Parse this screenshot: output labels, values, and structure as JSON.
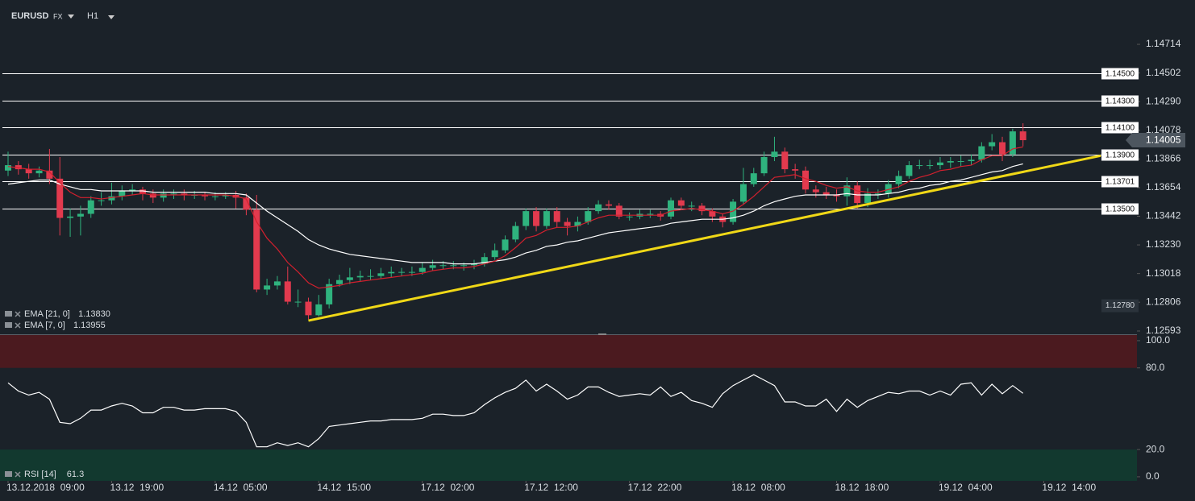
{
  "header": {
    "symbol": "EURUSD",
    "market": "FX",
    "timeframe": "H1"
  },
  "chart_data": [
    {
      "type": "candlestick",
      "up_color": "#2fb37e",
      "down_color": "#e23a4e",
      "open": [
        1.1378,
        1.1382,
        1.1379,
        1.1376,
        1.1378,
        1.1372,
        1.1343,
        1.1344,
        1.1346,
        1.1356,
        1.1356,
        1.1359,
        1.1363,
        1.1364,
        1.1361,
        1.1358,
        1.1361,
        1.1361,
        1.136,
        1.136,
        1.1359,
        1.1359,
        1.136,
        1.1358,
        1.1349,
        1.129,
        1.1293,
        1.1296,
        1.1281,
        1.1281,
        1.1271,
        1.1279,
        1.1294,
        1.1297,
        1.1299,
        1.13,
        1.13,
        1.1302,
        1.1303,
        1.1303,
        1.1303,
        1.1306,
        1.1308,
        1.1308,
        1.1308,
        1.1308,
        1.1309,
        1.1314,
        1.1319,
        1.1327,
        1.1337,
        1.1348,
        1.1337,
        1.1348,
        1.134,
        1.1337,
        1.134,
        1.1348,
        1.1353,
        1.1352,
        1.1344,
        1.1344,
        1.1346,
        1.1346,
        1.1344,
        1.1356,
        1.1352,
        1.1352,
        1.1348,
        1.1344,
        1.134,
        1.1355,
        1.1368,
        1.1376,
        1.1388,
        1.1392,
        1.1379,
        1.1378,
        1.1364,
        1.1362,
        1.136,
        1.1359,
        1.1367,
        1.1354,
        1.1361,
        1.1361,
        1.1368,
        1.1374,
        1.1382,
        1.1382,
        1.1382,
        1.1384,
        1.1385,
        1.1385,
        1.1386,
        1.1396,
        1.1399,
        1.139,
        1.1407
      ],
      "high": [
        1.1392,
        1.1385,
        1.1383,
        1.1381,
        1.1394,
        1.1388,
        1.135,
        1.1352,
        1.1359,
        1.1362,
        1.1369,
        1.1367,
        1.1368,
        1.1366,
        1.1364,
        1.1364,
        1.1364,
        1.1364,
        1.1363,
        1.1362,
        1.1362,
        1.1362,
        1.1363,
        1.1361,
        1.136,
        1.1298,
        1.13,
        1.1307,
        1.129,
        1.1284,
        1.1286,
        1.1298,
        1.1301,
        1.1306,
        1.1304,
        1.1305,
        1.1306,
        1.1307,
        1.1306,
        1.1307,
        1.131,
        1.1312,
        1.1311,
        1.1311,
        1.131,
        1.1312,
        1.1317,
        1.1324,
        1.133,
        1.134,
        1.135,
        1.1351,
        1.135,
        1.1351,
        1.1343,
        1.1344,
        1.1351,
        1.1356,
        1.1356,
        1.1354,
        1.1347,
        1.1349,
        1.1349,
        1.1348,
        1.1358,
        1.1358,
        1.1355,
        1.1354,
        1.135,
        1.1346,
        1.1357,
        1.138,
        1.138,
        1.1392,
        1.1403,
        1.1395,
        1.1383,
        1.1381,
        1.1367,
        1.1366,
        1.1364,
        1.1373,
        1.137,
        1.1365,
        1.1364,
        1.1371,
        1.1378,
        1.1385,
        1.1386,
        1.1386,
        1.1388,
        1.1388,
        1.1389,
        1.139,
        1.1399,
        1.1405,
        1.1403,
        1.1409,
        1.1413
      ],
      "low": [
        1.1374,
        1.1375,
        1.1372,
        1.1373,
        1.1368,
        1.133,
        1.1329,
        1.133,
        1.1343,
        1.1352,
        1.1353,
        1.1356,
        1.136,
        1.1356,
        1.1354,
        1.1355,
        1.1357,
        1.1356,
        1.1357,
        1.1356,
        1.1356,
        1.1357,
        1.135,
        1.1345,
        1.1288,
        1.1286,
        1.129,
        1.1279,
        1.1277,
        1.1268,
        1.127,
        1.1276,
        1.1292,
        1.1294,
        1.1296,
        1.1297,
        1.1298,
        1.1299,
        1.13,
        1.13,
        1.1301,
        1.1304,
        1.1305,
        1.1305,
        1.1304,
        1.1305,
        1.1307,
        1.1312,
        1.1317,
        1.1325,
        1.1334,
        1.1333,
        1.1335,
        1.1336,
        1.133,
        1.1333,
        1.1338,
        1.1346,
        1.1349,
        1.1342,
        1.1341,
        1.1342,
        1.1343,
        1.1341,
        1.1342,
        1.1349,
        1.1348,
        1.1345,
        1.134,
        1.1336,
        1.1338,
        1.1353,
        1.1366,
        1.1374,
        1.1385,
        1.1376,
        1.1372,
        1.1361,
        1.1358,
        1.1357,
        1.1355,
        1.1352,
        1.135,
        1.1351,
        1.1357,
        1.1358,
        1.1365,
        1.1372,
        1.1379,
        1.1379,
        1.1379,
        1.138,
        1.1381,
        1.1382,
        1.1384,
        1.1393,
        1.1385,
        1.1388,
        1.1396
      ],
      "close": [
        1.1382,
        1.1379,
        1.1376,
        1.1378,
        1.1372,
        1.1343,
        1.1344,
        1.1346,
        1.1356,
        1.1356,
        1.1359,
        1.1363,
        1.1364,
        1.1361,
        1.1358,
        1.1361,
        1.1361,
        1.136,
        1.136,
        1.1359,
        1.1359,
        1.136,
        1.1358,
        1.1349,
        1.129,
        1.1293,
        1.1296,
        1.1281,
        1.1281,
        1.1271,
        1.1279,
        1.1294,
        1.1297,
        1.1299,
        1.13,
        1.13,
        1.1302,
        1.1303,
        1.1303,
        1.1303,
        1.1306,
        1.1308,
        1.1308,
        1.1308,
        1.1308,
        1.1309,
        1.1314,
        1.1319,
        1.1327,
        1.1337,
        1.1348,
        1.1337,
        1.1348,
        1.134,
        1.1337,
        1.134,
        1.1348,
        1.1353,
        1.1352,
        1.1344,
        1.1344,
        1.1346,
        1.1346,
        1.1344,
        1.1356,
        1.1352,
        1.1352,
        1.1348,
        1.1344,
        1.134,
        1.1355,
        1.1368,
        1.1376,
        1.1388,
        1.1392,
        1.1379,
        1.1378,
        1.1364,
        1.1362,
        1.136,
        1.1359,
        1.1367,
        1.1354,
        1.1361,
        1.1361,
        1.1368,
        1.1374,
        1.1382,
        1.1382,
        1.1382,
        1.1384,
        1.1385,
        1.1385,
        1.1386,
        1.1396,
        1.1399,
        1.139,
        1.1407,
        1.14005
      ],
      "series": [
        {
          "name": "EMA [21, 0]",
          "color": "#ffffff",
          "last_label": "1.13830",
          "values": [
            1.1368,
            1.1369,
            1.137,
            1.1371,
            1.1371,
            1.1368,
            1.1366,
            1.1364,
            1.1364,
            1.1363,
            1.1363,
            1.1363,
            1.1363,
            1.1363,
            1.1362,
            1.1362,
            1.1362,
            1.1362,
            1.1362,
            1.1362,
            1.1361,
            1.1361,
            1.1361,
            1.136,
            1.1354,
            1.1348,
            1.1343,
            1.1338,
            1.1333,
            1.1327,
            1.1323,
            1.132,
            1.1318,
            1.1316,
            1.1315,
            1.1314,
            1.1313,
            1.1312,
            1.1311,
            1.131,
            1.131,
            1.131,
            1.131,
            1.1309,
            1.1309,
            1.1309,
            1.131,
            1.1311,
            1.1312,
            1.1314,
            1.1317,
            1.1319,
            1.1322,
            1.1323,
            1.1325,
            1.1326,
            1.1328,
            1.133,
            1.1332,
            1.1333,
            1.1334,
            1.1335,
            1.1336,
            1.1337,
            1.1339,
            1.134,
            1.1341,
            1.1342,
            1.1342,
            1.1342,
            1.1343,
            1.1345,
            1.1348,
            1.1352,
            1.1355,
            1.1357,
            1.1359,
            1.136,
            1.136,
            1.136,
            1.136,
            1.1361,
            1.136,
            1.136,
            1.136,
            1.1361,
            1.1362,
            1.1364,
            1.1365,
            1.1367,
            1.1368,
            1.137,
            1.1371,
            1.1373,
            1.1375,
            1.1377,
            1.1378,
            1.1381,
            1.1383
          ]
        },
        {
          "name": "EMA [7, 0]",
          "color": "#d3202e",
          "last_label": "1.13955",
          "values": [
            1.1381,
            1.138,
            1.1379,
            1.1379,
            1.1377,
            1.1369,
            1.1362,
            1.1358,
            1.1358,
            1.1357,
            1.1358,
            1.1359,
            1.136,
            1.1361,
            1.136,
            1.136,
            1.136,
            1.136,
            1.136,
            1.136,
            1.136,
            1.136,
            1.1359,
            1.1357,
            1.134,
            1.1328,
            1.132,
            1.131,
            1.1303,
            1.1295,
            1.1291,
            1.1292,
            1.1293,
            1.1295,
            1.1296,
            1.1297,
            1.1298,
            1.1299,
            1.13,
            1.1301,
            1.1302,
            1.1304,
            1.1305,
            1.1306,
            1.1306,
            1.1307,
            1.1309,
            1.1311,
            1.1315,
            1.1321,
            1.1328,
            1.133,
            1.1334,
            1.1336,
            1.1336,
            1.1337,
            1.134,
            1.1343,
            1.1345,
            1.1345,
            1.1345,
            1.1345,
            1.1345,
            1.1345,
            1.1348,
            1.1349,
            1.135,
            1.1349,
            1.1348,
            1.1346,
            1.1348,
            1.1353,
            1.1359,
            1.1366,
            1.1373,
            1.1374,
            1.1375,
            1.1372,
            1.137,
            1.1367,
            1.1365,
            1.1366,
            1.1363,
            1.1362,
            1.1362,
            1.1364,
            1.1366,
            1.137,
            1.1373,
            1.1375,
            1.1378,
            1.1379,
            1.1381,
            1.1382,
            1.1386,
            1.1389,
            1.1389,
            1.1394,
            1.13955
          ]
        }
      ],
      "xlim": [
        0,
        109
      ],
      "xticks": [
        {
          "value": 0,
          "label": "13.12.2018  09:00"
        },
        {
          "value": 10,
          "label": "13.12  19:00"
        },
        {
          "value": 20,
          "label": "14.12  05:00"
        },
        {
          "value": 30,
          "label": "14.12  15:00"
        },
        {
          "value": 40,
          "label": "17.12  02:00"
        },
        {
          "value": 50,
          "label": "17.12  12:00"
        },
        {
          "value": 60,
          "label": "17.12  22:00"
        },
        {
          "value": 70,
          "label": "18.12  08:00"
        },
        {
          "value": 80,
          "label": "18.12  18:00"
        },
        {
          "value": 90,
          "label": "19.12  04:00"
        },
        {
          "value": 100,
          "label": "19.12  14:00"
        }
      ],
      "ylim": [
        1.12569,
        1.15042
      ],
      "yticks": [
        1.14714,
        1.14502,
        {
          "value": 1.1429,
          "label": "1.14290"
        },
        1.14078,
        1.13866,
        1.13654,
        1.13442,
        {
          "value": 1.1323,
          "label": "1.13230"
        },
        1.13018,
        1.12806,
        1.12593
      ],
      "levels": [
        {
          "value": 1.145,
          "label": "1.14500"
        },
        {
          "value": 1.143,
          "label": "1.14300"
        },
        {
          "value": 1.141,
          "label": "1.14100"
        },
        {
          "value": 1.139,
          "label": "1.13900"
        },
        1.13701,
        {
          "value": 1.135,
          "label": "1.13500"
        }
      ],
      "level_color": "#ffffff",
      "marker": {
        "value": 1.1278,
        "label": "1.12780"
      },
      "trendline": {
        "color": "#f0d817",
        "x": [
          29,
          105.5
        ],
        "y": [
          1.1267,
          1.1389
        ]
      }
    },
    {
      "type": "line",
      "series": [
        {
          "name": "RSI [14]",
          "color": "#ffffff",
          "values": [
            69,
            63,
            60,
            62,
            57,
            40,
            39,
            43,
            49,
            49,
            52,
            54,
            52,
            47,
            47,
            51,
            51,
            49,
            49,
            50,
            50,
            50,
            48,
            40,
            22,
            22,
            25,
            23,
            25,
            22,
            28,
            37,
            38,
            39,
            40,
            41,
            41,
            42,
            42,
            42,
            43,
            46,
            46,
            45,
            45,
            47,
            53,
            58,
            62,
            65,
            71,
            63,
            68,
            63,
            57,
            60,
            66,
            66,
            62,
            59,
            60,
            61,
            60,
            66,
            59,
            62,
            56,
            54,
            51,
            61,
            67,
            71,
            75,
            71,
            67,
            55,
            55,
            52,
            52,
            57,
            48,
            57,
            51,
            56,
            59,
            62,
            61,
            63,
            63,
            60,
            63,
            60,
            68,
            69,
            60,
            68,
            61,
            67,
            61.3
          ]
        }
      ],
      "ylim": [
        -3,
        104.1
      ],
      "yticks": [
        {
          "value": 100,
          "label": "100.0"
        },
        {
          "value": 80,
          "label": "80.0"
        },
        {
          "value": 20,
          "label": "20.0"
        },
        {
          "value": 0,
          "label": "0.0"
        }
      ],
      "overbought_color": "#4b1a1f",
      "oversold_color": "#12392f"
    }
  ]
}
